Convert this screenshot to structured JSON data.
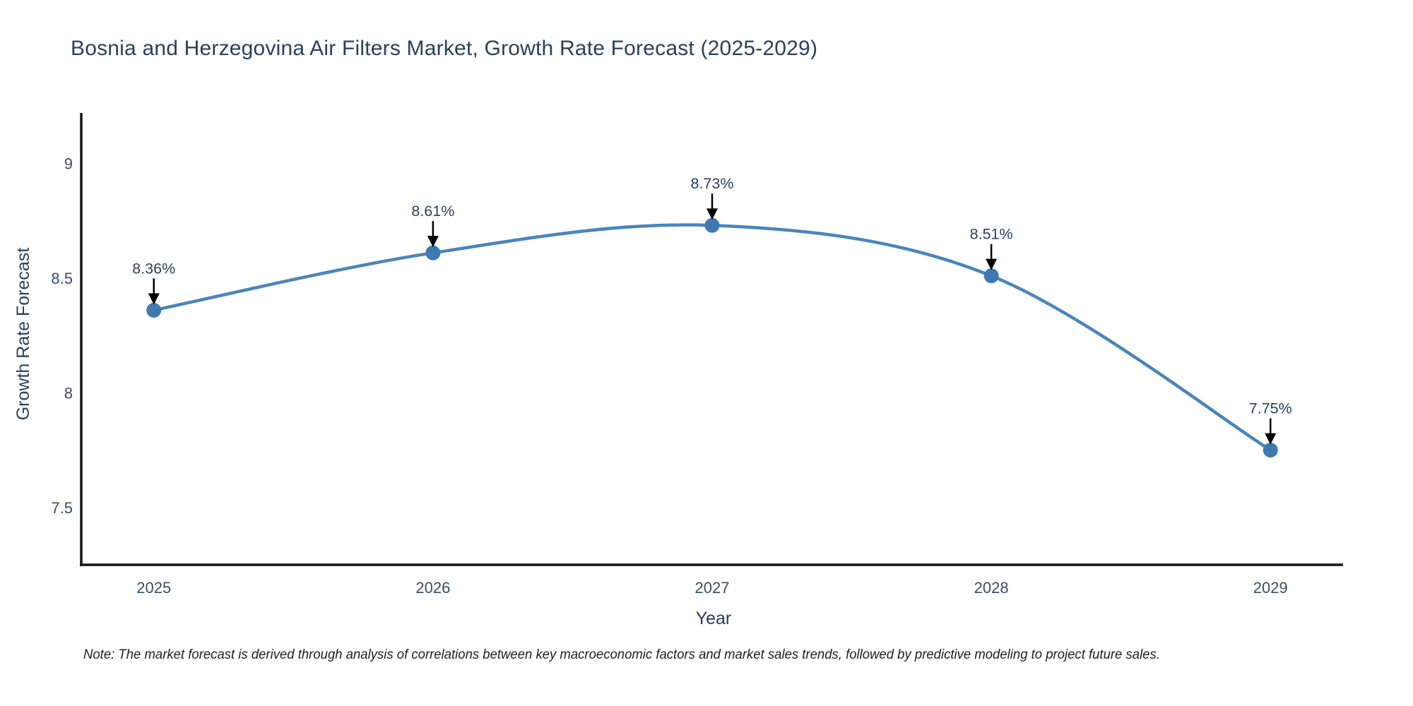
{
  "title": "Bosnia and Herzegovina Air Filters Market, Growth Rate Forecast (2025-2029)",
  "note": "Note: The market forecast is derived through analysis of correlations between key macroeconomic factors and market sales trends, followed by predictive modeling to project future sales.",
  "x_axis": {
    "label": "Year",
    "tick_labels": [
      "2025",
      "2026",
      "2027",
      "2028",
      "2029"
    ]
  },
  "y_axis": {
    "label": "Growth Rate Forecast",
    "tick_labels": [
      "7.5",
      "8",
      "8.5",
      "9"
    ]
  },
  "colors": {
    "background": "#ffffff",
    "title_text": "#2a3f5f",
    "axis_title_text": "#2a3f5f",
    "tick_text": "#3c4c66",
    "axis_line": "#141414",
    "line": "#4a85b9",
    "marker": "#3e79af",
    "annotation_text": "#2a3f5f",
    "annotation_arrow": "#000000",
    "note_text": "#1f1f1f"
  },
  "chart_data": {
    "type": "line",
    "title": "Bosnia and Herzegovina Air Filters Market, Growth Rate Forecast (2025-2029)",
    "xlabel": "Year",
    "ylabel": "Growth Rate Forecast",
    "x": [
      2025,
      2026,
      2027,
      2028,
      2029
    ],
    "series": [
      {
        "name": "Growth Rate Forecast",
        "values": [
          8.36,
          8.61,
          8.73,
          8.51,
          7.75
        ]
      }
    ],
    "point_labels": [
      "8.36%",
      "8.61%",
      "8.73%",
      "8.51%",
      "7.75%"
    ],
    "xticks": [
      2025,
      2026,
      2027,
      2028,
      2029
    ],
    "yticks": [
      7.5,
      8,
      8.5,
      9
    ],
    "xlim": [
      2024.74,
      2029.26
    ],
    "ylim": [
      7.25,
      9.22
    ],
    "grid": false,
    "legend": "none",
    "line_shape": "spline",
    "marker_symbol": "circle"
  }
}
